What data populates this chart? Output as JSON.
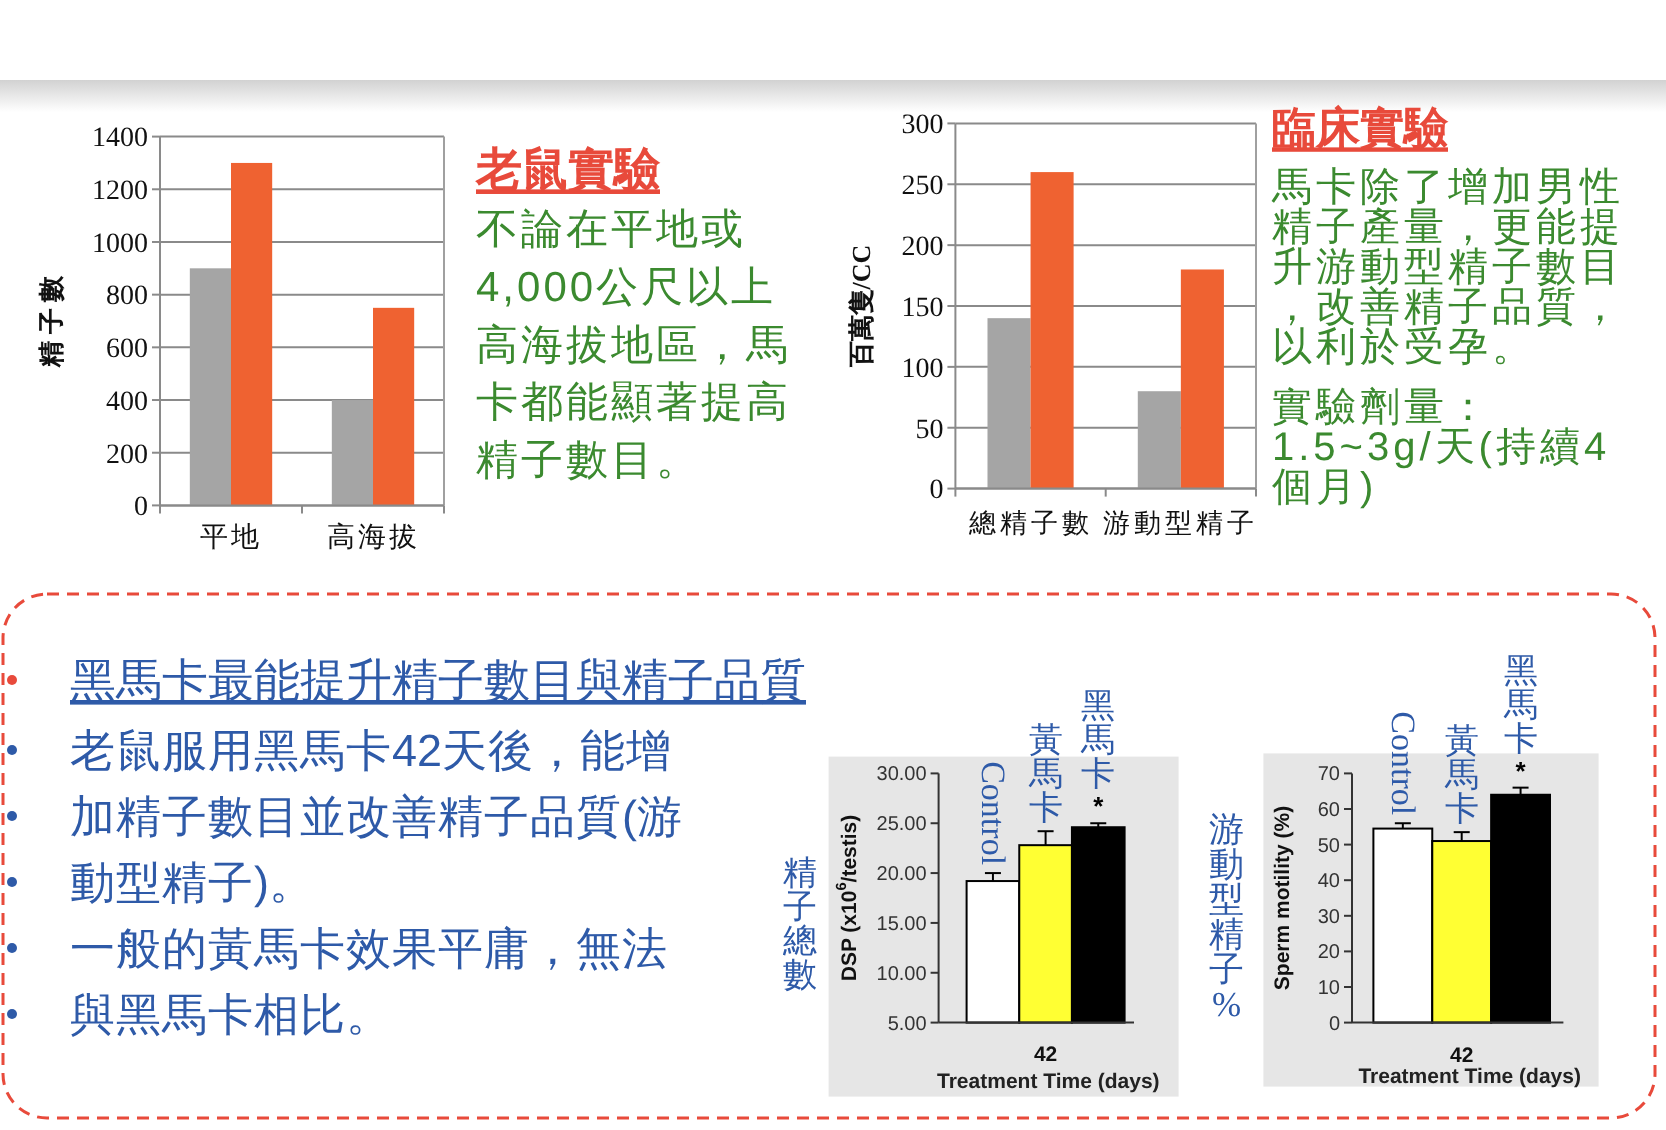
{
  "chart_data": [
    {
      "type": "bar",
      "ylabel": "精 子 數",
      "categories": [
        "平地",
        "高海拔"
      ],
      "series": [
        {
          "color": "#a5a5a5",
          "values": [
            900,
            400
          ]
        },
        {
          "color": "#ef6231",
          "values": [
            1300,
            750
          ]
        }
      ],
      "ylim": [
        0,
        1400
      ],
      "yticks": [
        0,
        200,
        400,
        600,
        800,
        1000,
        1200,
        1400
      ],
      "grid": "y"
    },
    {
      "type": "other",
      "title": "老鼠實驗",
      "annotations": [
        "不論在平地或4,000公尺以上高海拔地區，馬卡都能顯著提高精子數目。"
      ]
    },
    {
      "type": "bar",
      "ylabel": "百萬隻/CC",
      "categories": [
        "總精子數",
        "游動型精子"
      ],
      "series": [
        {
          "color": "#a5a5a5",
          "values": [
            140,
            80
          ]
        },
        {
          "color": "#ef6231",
          "values": [
            260,
            180
          ]
        }
      ],
      "ylim": [
        0,
        300
      ],
      "yticks": [
        0,
        50,
        100,
        150,
        200,
        250,
        300
      ],
      "grid": "y"
    },
    {
      "type": "other",
      "title": "臨床實驗",
      "annotations": [
        "馬卡除了增加男性精子產量，更能提升游動型精子數目，改善精子品質，以利於受孕。",
        "實驗劑量：1.5~3g/天(持續4個月)"
      ]
    },
    {
      "type": "other",
      "title": "黑馬卡最能提升精子數目與精子品質",
      "annotations": [
        "老鼠服用黑馬卡42天後，能增加精子數目並改善精子品質(游動型精子)。",
        "一般的黃馬卡效果平庸，無法與黑馬卡相比。"
      ]
    },
    {
      "type": "bar",
      "title": "精子總數",
      "xlabel": "Treatment Time (days)",
      "ylabel": "DSP (x10$^{6}$/testis)",
      "categories": [
        "42"
      ],
      "series": [
        {
          "name": "Control",
          "color": "#ffffff",
          "values": [
            19.2
          ],
          "errors": [
            0.8
          ]
        },
        {
          "name": "黃馬卡",
          "color": "#ffff33",
          "values": [
            22.8
          ],
          "errors": [
            1.4
          ]
        },
        {
          "name": "黑馬卡",
          "color": "#000000",
          "values": [
            24.6
          ],
          "errors": [
            0.4
          ]
        }
      ],
      "ylim": [
        5,
        30
      ],
      "yticks": [
        {
          "value": 5,
          "label": "5.00"
        },
        {
          "value": 10,
          "label": "10.00"
        },
        {
          "value": 15,
          "label": "15.00"
        },
        {
          "value": 20,
          "label": "20.00"
        },
        {
          "value": 25,
          "label": "25.00"
        },
        {
          "value": 30,
          "label": "30.00"
        }
      ],
      "annotations": [
        "*"
      ]
    },
    {
      "type": "bar",
      "title": "游動型精子%",
      "xlabel": "Treatment Time (days)",
      "ylabel": "Sperm motility (%)",
      "categories": [
        "42"
      ],
      "series": [
        {
          "name": "Control",
          "color": "#ffffff",
          "values": [
            54.5
          ],
          "errors": [
            1.5
          ]
        },
        {
          "name": "黃馬卡",
          "color": "#ffff33",
          "values": [
            51
          ],
          "errors": [
            2.5
          ]
        },
        {
          "name": "黑馬卡",
          "color": "#000000",
          "values": [
            64
          ],
          "errors": [
            2
          ]
        }
      ],
      "ylim": [
        0,
        70
      ],
      "yticks": [
        0,
        10,
        20,
        30,
        40,
        50,
        60,
        70
      ],
      "annotations": [
        "*"
      ]
    }
  ]
}
